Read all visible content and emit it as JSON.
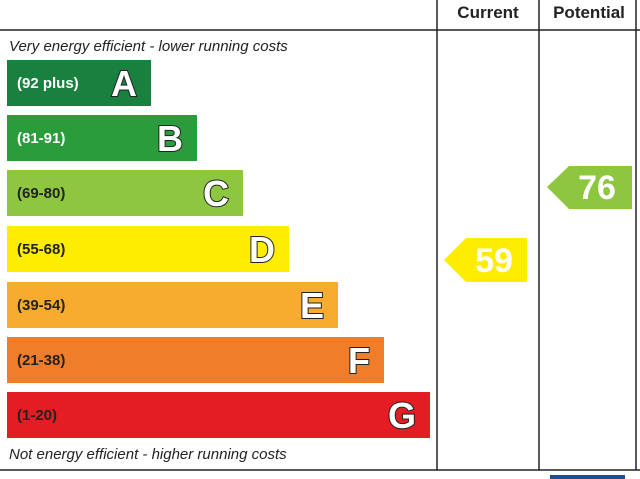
{
  "header": {
    "current": "Current",
    "potential": "Potential"
  },
  "notes": {
    "top": "Very energy efficient - lower running costs",
    "bottom": "Not energy efficient - higher running costs"
  },
  "bands": [
    {
      "range": "(92 plus)",
      "letter": "A"
    },
    {
      "range": "(81-91)",
      "letter": "B"
    },
    {
      "range": "(69-80)",
      "letter": "C"
    },
    {
      "range": "(55-68)",
      "letter": "D"
    },
    {
      "range": "(39-54)",
      "letter": "E"
    },
    {
      "range": "(21-38)",
      "letter": "F"
    },
    {
      "range": "(1-20)",
      "letter": "G"
    }
  ],
  "ratings": {
    "current": 59,
    "potential": 76
  }
}
